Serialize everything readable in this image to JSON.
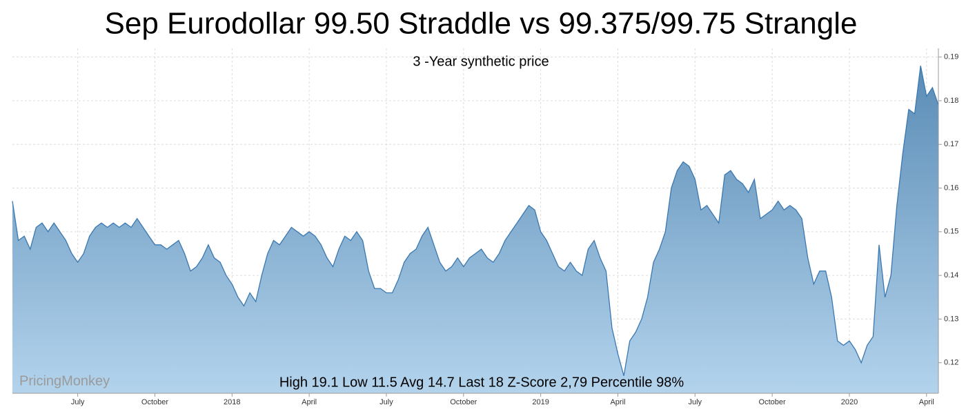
{
  "chart_data": {
    "type": "area",
    "title": "Sep Eurodollar 99.50 Straddle vs 99.375/99.75 Strangle",
    "subtitle": "3 -Year synthetic price",
    "annotation": "High 19.1 Low 11.5 Avg 14.7 Last 18  Z-Score 2,79 Percentile 98%",
    "watermark": "PricingMonkey",
    "color": "#3a78b0",
    "grid": true,
    "ylim": [
      0.113,
      0.192
    ],
    "yticks": [
      0.12,
      0.13,
      0.14,
      0.15,
      0.16,
      0.17,
      0.18,
      0.19
    ],
    "categories": [
      null,
      null,
      null,
      null,
      null,
      null,
      null,
      null,
      null,
      null,
      null,
      "July",
      null,
      null,
      null,
      null,
      null,
      null,
      null,
      null,
      null,
      null,
      null,
      null,
      "October",
      null,
      null,
      null,
      null,
      null,
      null,
      null,
      null,
      null,
      null,
      null,
      null,
      "2018",
      null,
      null,
      null,
      null,
      null,
      null,
      null,
      null,
      null,
      null,
      null,
      null,
      "April",
      null,
      null,
      null,
      null,
      null,
      null,
      null,
      null,
      null,
      null,
      null,
      null,
      "July",
      null,
      null,
      null,
      null,
      null,
      null,
      null,
      null,
      null,
      null,
      null,
      null,
      "October",
      null,
      null,
      null,
      null,
      null,
      null,
      null,
      null,
      null,
      null,
      null,
      null,
      "2019",
      null,
      null,
      null,
      null,
      null,
      null,
      null,
      null,
      null,
      null,
      null,
      null,
      "April",
      null,
      null,
      null,
      null,
      null,
      null,
      null,
      null,
      null,
      null,
      null,
      null,
      "July",
      null,
      null,
      null,
      null,
      null,
      null,
      null,
      null,
      null,
      null,
      null,
      null,
      "October",
      null,
      null,
      null,
      null,
      null,
      null,
      null,
      null,
      null,
      null,
      null,
      null,
      "2020",
      null,
      null,
      null,
      null,
      null,
      null,
      null,
      null,
      null,
      null,
      null,
      null,
      "April",
      null,
      null
    ],
    "values": [
      0.157,
      0.148,
      0.149,
      0.146,
      0.151,
      0.152,
      0.15,
      0.152,
      0.15,
      0.148,
      0.145,
      0.143,
      0.145,
      0.149,
      0.151,
      0.152,
      0.151,
      0.152,
      0.151,
      0.152,
      0.151,
      0.153,
      0.151,
      0.149,
      0.147,
      0.147,
      0.146,
      0.147,
      0.148,
      0.145,
      0.141,
      0.142,
      0.144,
      0.147,
      0.144,
      0.143,
      0.14,
      0.138,
      0.135,
      0.133,
      0.136,
      0.134,
      0.14,
      0.145,
      0.148,
      0.147,
      0.149,
      0.151,
      0.15,
      0.149,
      0.15,
      0.149,
      0.147,
      0.144,
      0.142,
      0.146,
      0.149,
      0.148,
      0.15,
      0.148,
      0.141,
      0.137,
      0.137,
      0.136,
      0.136,
      0.139,
      0.143,
      0.145,
      0.146,
      0.149,
      0.151,
      0.147,
      0.143,
      0.141,
      0.142,
      0.144,
      0.142,
      0.144,
      0.145,
      0.146,
      0.144,
      0.143,
      0.145,
      0.148,
      0.15,
      0.152,
      0.154,
      0.156,
      0.155,
      0.15,
      0.148,
      0.145,
      0.142,
      0.141,
      0.143,
      0.141,
      0.14,
      0.146,
      0.148,
      0.144,
      0.141,
      0.128,
      0.122,
      0.117,
      0.125,
      0.127,
      0.13,
      0.135,
      0.143,
      0.146,
      0.15,
      0.16,
      0.164,
      0.166,
      0.165,
      0.162,
      0.155,
      0.156,
      0.154,
      0.152,
      0.163,
      0.164,
      0.162,
      0.161,
      0.159,
      0.162,
      0.153,
      0.154,
      0.155,
      0.157,
      0.155,
      0.156,
      0.155,
      0.153,
      0.144,
      0.138,
      0.141,
      0.141,
      0.135,
      0.125,
      0.124,
      0.125,
      0.123,
      0.12,
      0.124,
      0.126,
      0.147,
      0.135,
      0.14,
      0.156,
      0.168,
      0.178,
      0.177,
      0.188,
      0.181,
      0.183,
      0.179
    ]
  }
}
